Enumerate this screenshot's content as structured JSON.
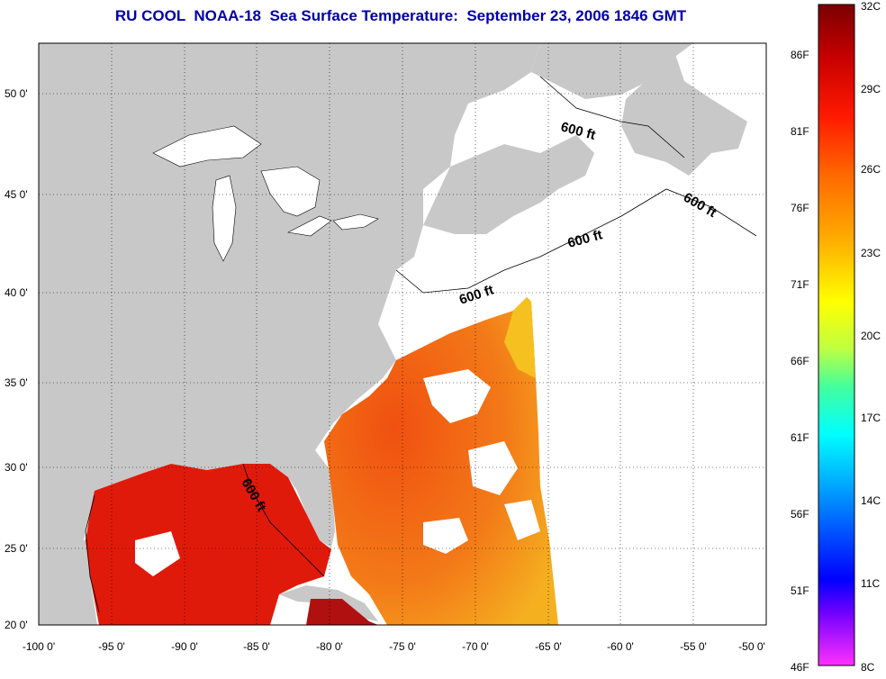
{
  "title": "RU COOL  NOAA-18  Sea Surface Temperature:  September 23, 2006 1846 GMT",
  "axes": {
    "x_ticks": [
      "-100 0'",
      "-95 0'",
      "-90 0'",
      "-85 0'",
      "-80 0'",
      "-75 0'",
      "-70 0'",
      "-65 0'",
      "-60 0'",
      "-55 0'",
      "-50 0'"
    ],
    "y_ticks": [
      "50 0'",
      "45 0'",
      "40 0'",
      "35 0'",
      "30 0'",
      "25 0'",
      "20 0'"
    ],
    "x_range": [
      -100,
      -50
    ],
    "y_range": [
      20,
      52.5
    ],
    "grid": true
  },
  "contour_labels": [
    "600 ft",
    "600 ft",
    "600 ft",
    "600 ft",
    "600 ft"
  ],
  "colorbar": {
    "fahrenheit_labels": [
      "86F",
      "81F",
      "76F",
      "71F",
      "66F",
      "61F",
      "56F",
      "51F",
      "46F"
    ],
    "celsius_labels": [
      "32C",
      "29C",
      "26C",
      "23C",
      "20C",
      "17C",
      "14C",
      "11C",
      "8C"
    ],
    "range_c": [
      8,
      32
    ]
  },
  "colors": {
    "land": "#c8c8c8",
    "title": "#0000a8",
    "warm": "#e01a0a",
    "hot": "#b01010",
    "mid": "#f06a10",
    "cool": "#f5c020"
  }
}
